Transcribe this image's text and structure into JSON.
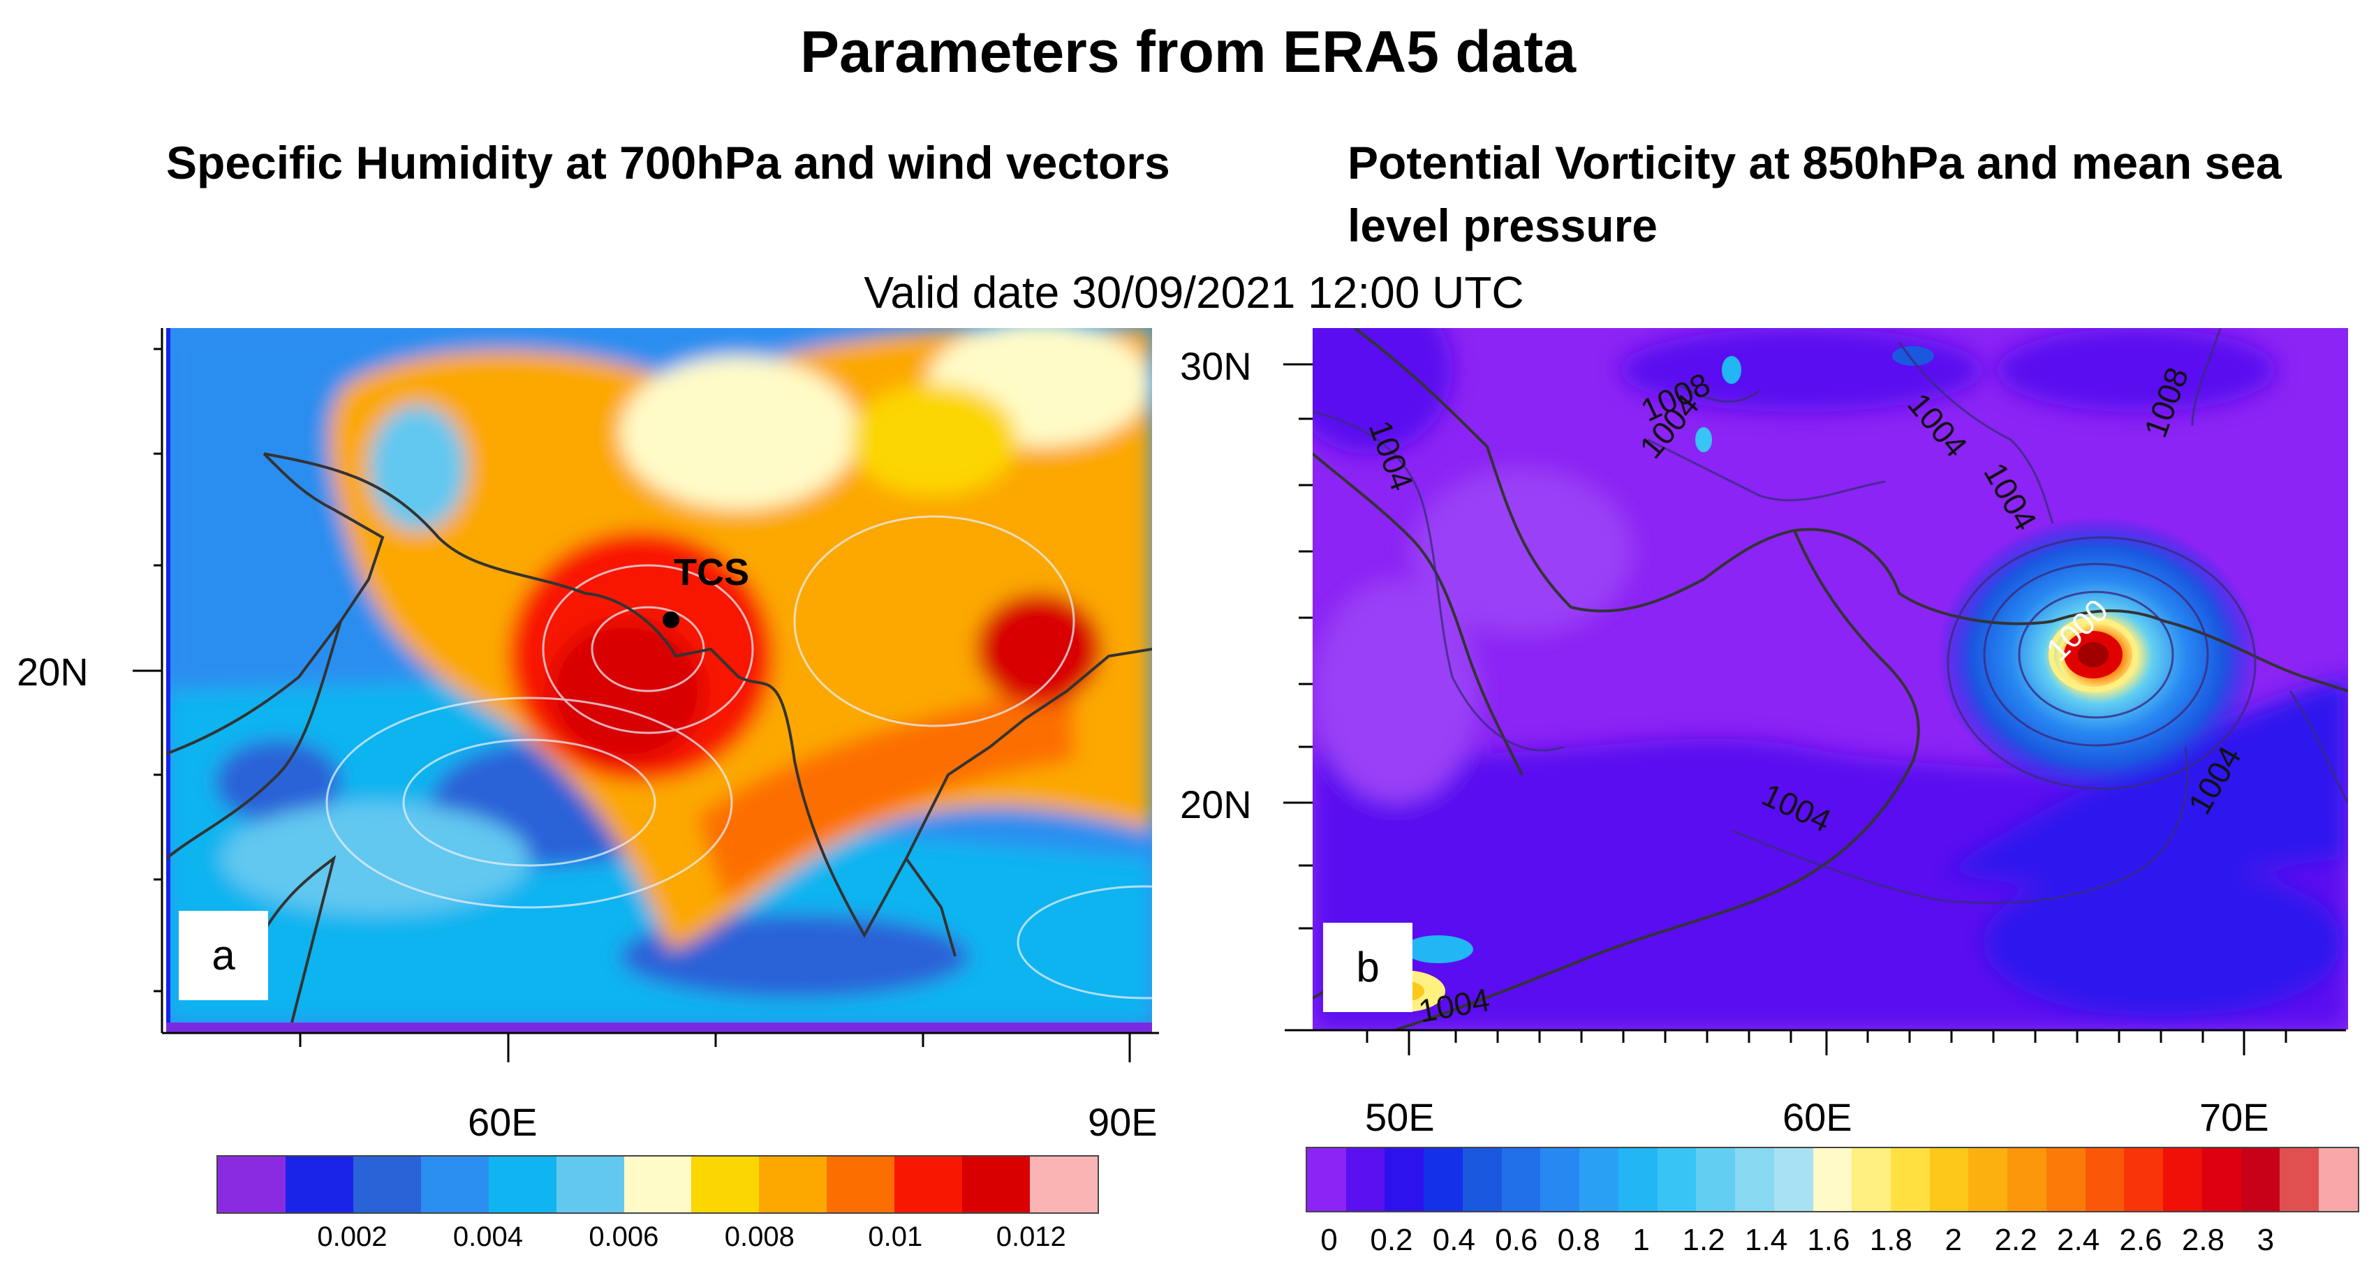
{
  "figure": {
    "title": "Parameters from ERA5 data",
    "valid_date": "Valid date 30/09/2021 12:00 UTC"
  },
  "panel_a": {
    "title": "Specific Humidity at 700hPa and wind vectors",
    "label": "a",
    "marker_label": "TCS",
    "y_labels": [
      "20N"
    ],
    "x_labels": [
      "60E",
      "90E"
    ],
    "colorbar": {
      "colors": [
        "#8a2be2",
        "#1a23e8",
        "#2a62d8",
        "#2a8ef0",
        "#10b4f0",
        "#62c8f0",
        "#fffbc8",
        "#fcd600",
        "#fca800",
        "#fc6e00",
        "#f81800",
        "#d80000",
        "#fab4b4"
      ],
      "tick_labels": [
        "0.002",
        "0.004",
        "0.006",
        "0.008",
        "0.01",
        "0.012"
      ]
    }
  },
  "panel_b": {
    "title": "Potential Vorticity at 850hPa and mean sea level pressure",
    "label": "b",
    "y_labels": [
      "30N",
      "20N"
    ],
    "x_labels": [
      "50E",
      "60E",
      "70E"
    ],
    "contour_labels": [
      "1008",
      "1004",
      "1004",
      "1004",
      "1004",
      "1008",
      "1000",
      "1004",
      "1004",
      "1004"
    ],
    "colorbar": {
      "colors": [
        "#8b24f4",
        "#5a10f0",
        "#2e12ee",
        "#1430e8",
        "#1a58e0",
        "#2070ea",
        "#2888f2",
        "#2aa0f4",
        "#22b6f4",
        "#38c4f4",
        "#62cff2",
        "#88d8f2",
        "#a8e0f4",
        "#fffac8",
        "#fff080",
        "#ffe040",
        "#fcc81a",
        "#fcb010",
        "#fc960a",
        "#fc7a08",
        "#fa5808",
        "#f83408",
        "#f01008",
        "#de0010",
        "#c80018",
        "#e05050",
        "#f8a8a8"
      ],
      "tick_labels": [
        "0",
        "0.2",
        "0.4",
        "0.6",
        "0.8",
        "1",
        "1.2",
        "1.4",
        "1.6",
        "1.8",
        "2",
        "2.2",
        "2.4",
        "2.6",
        "2.8",
        "3"
      ]
    }
  }
}
